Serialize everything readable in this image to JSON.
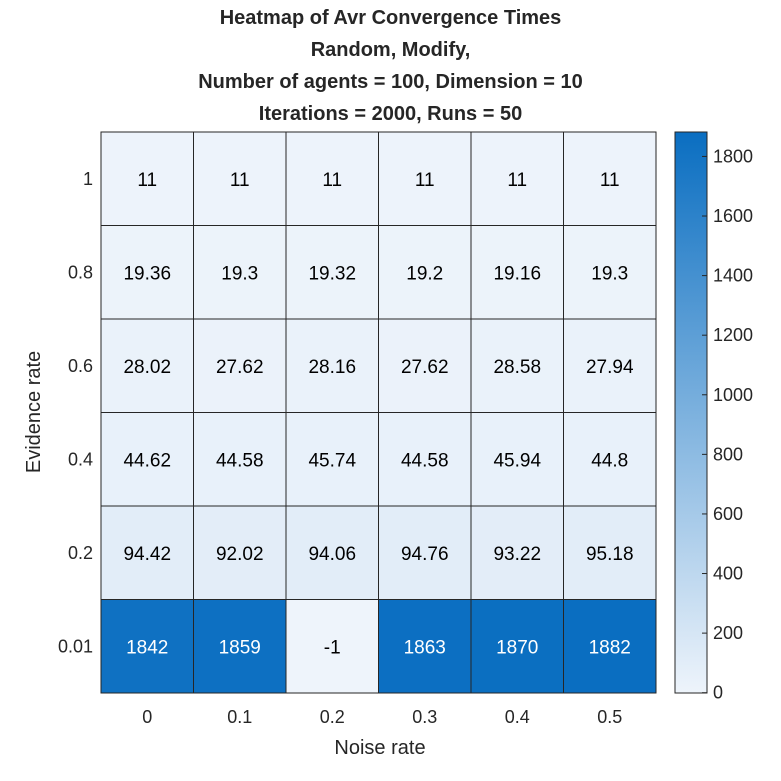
{
  "chart_data": {
    "type": "heatmap",
    "title": [
      "Heatmap of Avr Convergence Times",
      "Random, Modify,",
      "Number of agents = 100, Dimension = 10",
      "Iterations = 2000, Runs = 50"
    ],
    "xlabel": "Noise rate",
    "ylabel": "Evidence rate",
    "x_categories": [
      "0",
      "0.1",
      "0.2",
      "0.3",
      "0.4",
      "0.5"
    ],
    "y_categories": [
      "1",
      "0.8",
      "0.6",
      "0.4",
      "0.2",
      "0.01"
    ],
    "values": [
      [
        11,
        11,
        11,
        11,
        11,
        11
      ],
      [
        19.36,
        19.3,
        19.32,
        19.2,
        19.16,
        19.3
      ],
      [
        28.02,
        27.62,
        28.16,
        27.62,
        28.58,
        27.94
      ],
      [
        44.62,
        44.58,
        45.74,
        44.58,
        45.94,
        44.8
      ],
      [
        94.42,
        92.02,
        94.06,
        94.76,
        93.22,
        95.18
      ],
      [
        1842,
        1859,
        -1,
        1863,
        1870,
        1882
      ]
    ],
    "value_labels": [
      [
        "11",
        "11",
        "11",
        "11",
        "11",
        "11"
      ],
      [
        "19.36",
        "19.3",
        "19.32",
        "19.2",
        "19.16",
        "19.3"
      ],
      [
        "28.02",
        "27.62",
        "28.16",
        "27.62",
        "28.58",
        "27.94"
      ],
      [
        "44.62",
        "44.58",
        "45.74",
        "44.58",
        "45.94",
        "44.8"
      ],
      [
        "94.42",
        "92.02",
        "94.06",
        "94.76",
        "93.22",
        "95.18"
      ],
      [
        "1842",
        "1859",
        "-1",
        "1863",
        "1870",
        "1882"
      ]
    ],
    "colorbar": {
      "range": [
        -1,
        1882
      ],
      "ticks": [
        "0",
        "200",
        "400",
        "600",
        "800",
        "1000",
        "1200",
        "1400",
        "1600",
        "1800"
      ],
      "color_low": "#eef4fb",
      "color_high": "#0a6ec1"
    },
    "colors": {
      "text_light_bg": "#000000",
      "text_dark_bg": "#ffffff",
      "cell_border": "#262626"
    }
  }
}
